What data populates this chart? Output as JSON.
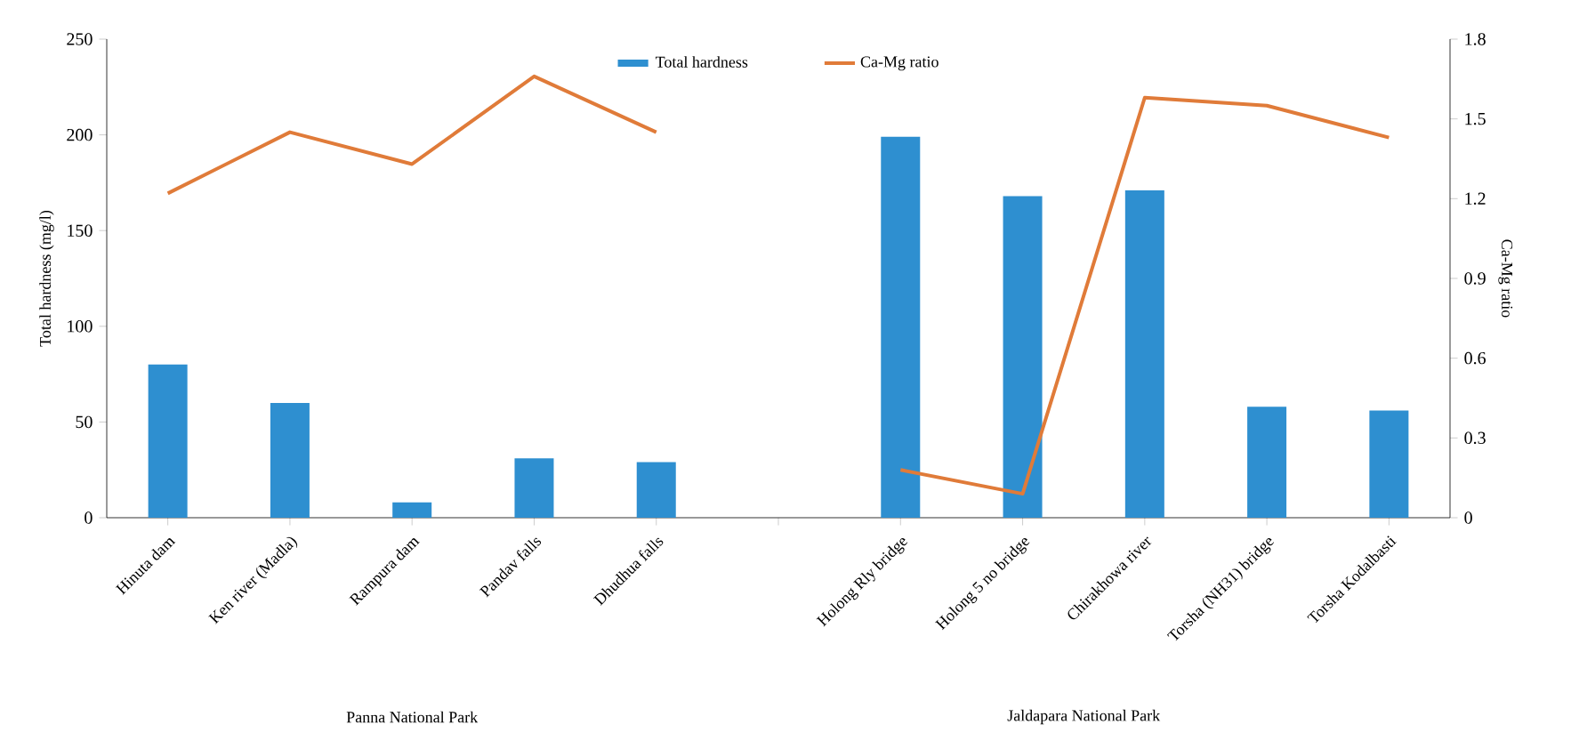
{
  "chart_data": {
    "type": "bar",
    "categories": [
      "Hinuta dam",
      "Ken river (Madla)",
      "Rampura dam",
      "Pandav falls",
      "Dhudhua falls",
      null,
      "Holong Rly bridge",
      "Holong 5 no bridge",
      "Chirakhowa river",
      "Torsha (NH31) bridge",
      "Torsha Kodalbasti"
    ],
    "series": [
      {
        "name": "Total hardness",
        "color": "#2e8fd0",
        "values": [
          80,
          60,
          8,
          31,
          29,
          null,
          199,
          168,
          171,
          58,
          56
        ]
      },
      {
        "name": "Ca-Mg ratio",
        "type": "line",
        "axis": "y2",
        "color": "#e07b39",
        "values": [
          1.22,
          1.45,
          1.33,
          1.66,
          1.45,
          null,
          0.18,
          0.09,
          1.58,
          1.55,
          1.43
        ]
      }
    ],
    "ylabel": "Total hardness (mg/l)",
    "y2label": "Ca-Mg ratio",
    "ylim": [
      0,
      250
    ],
    "yticks": [
      0,
      50,
      100,
      150,
      200,
      250
    ],
    "y2lim": [
      0,
      1.8
    ],
    "y2ticks": [
      0,
      0.3,
      0.6,
      0.9,
      1.2,
      1.5,
      1.8
    ],
    "legend": "top",
    "grid": false,
    "annotations": [
      "Panna National Park",
      "Jaldapara National Park"
    ]
  }
}
